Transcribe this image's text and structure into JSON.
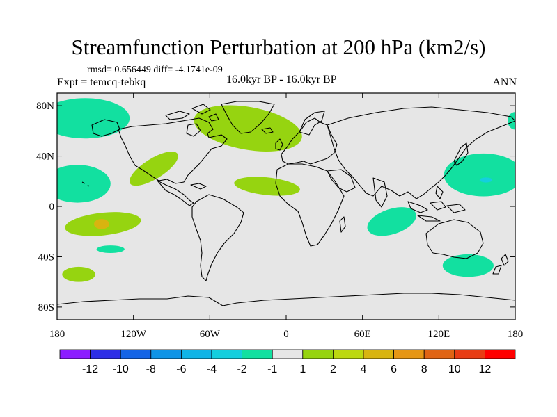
{
  "title": "Streamfunction Perturbation at 200 hPa (km2/s)",
  "stats_line": "rmsd= 0.656449 diff= -4.1741e-09",
  "expt_line": "Expt = temcq-tebkq",
  "period_line": "16.0kyr BP - 16.0kyr BP",
  "season": "ANN",
  "map": {
    "lon_range": [
      -180,
      180
    ],
    "lat_range": [
      -90,
      90
    ],
    "x_ticks": [
      {
        "lon": -180,
        "label": "180"
      },
      {
        "lon": -120,
        "label": "120W"
      },
      {
        "lon": -60,
        "label": "60W"
      },
      {
        "lon": 0,
        "label": "0"
      },
      {
        "lon": 60,
        "label": "60E"
      },
      {
        "lon": 120,
        "label": "120E"
      },
      {
        "lon": 180,
        "label": "180"
      }
    ],
    "y_ticks": [
      {
        "lat": 80,
        "label": "80N"
      },
      {
        "lat": 40,
        "label": "40N"
      },
      {
        "lat": 0,
        "label": "0"
      },
      {
        "lat": -40,
        "label": "40S"
      },
      {
        "lat": -80,
        "label": "80S"
      }
    ],
    "background_color": "#e6e6e6",
    "coast_color": "#000000",
    "anomalies": [
      {
        "name": "north-pacific-arctic",
        "lon": -158,
        "lat": 70,
        "rlon": 35,
        "rlat": 16,
        "rot": 0,
        "level": -2
      },
      {
        "name": "east-pacific-subtropics",
        "lon": -164,
        "lat": 18,
        "rlon": 26,
        "rlat": 15,
        "rot": 0,
        "level": -2
      },
      {
        "name": "hudson-bay-greenland",
        "lon": -30,
        "lat": 62,
        "rlon": 43,
        "rlat": 17,
        "rot": 10,
        "level": 2
      },
      {
        "name": "north-america-southeast",
        "lon": -104,
        "lat": 30,
        "rlon": 22,
        "rlat": 8,
        "rot": -32,
        "level": 2
      },
      {
        "name": "north-africa",
        "lon": -15,
        "lat": 16,
        "rlon": 26,
        "rlat": 7,
        "rot": 6,
        "level": 2
      },
      {
        "name": "south-pacific-tropics",
        "lon": -144,
        "lat": -14,
        "rlon": 30,
        "rlat": 9,
        "rot": -6,
        "level": 2
      },
      {
        "name": "south-pacific-tropics-peak",
        "lon": -145,
        "lat": -14,
        "rlon": 6,
        "rlat": 4,
        "rot": 0,
        "level": 4
      },
      {
        "name": "south-pacific-midlat",
        "lon": -138,
        "lat": -34,
        "rlon": 11,
        "rlat": 3,
        "rot": 0,
        "level": -2
      },
      {
        "name": "south-pacific-high",
        "lon": -163,
        "lat": -54,
        "rlon": 13,
        "rlat": 6,
        "rot": 0,
        "level": 2
      },
      {
        "name": "west-pacific-japan",
        "lon": 155,
        "lat": 25,
        "rlon": 31,
        "rlat": 17,
        "rot": 0,
        "level": -2
      },
      {
        "name": "west-pacific-japan-core",
        "lon": 157,
        "lat": 21,
        "rlon": 5,
        "rlat": 2,
        "rot": 0,
        "level": -4
      },
      {
        "name": "arctic-east-edge",
        "lon": 180,
        "lat": 68,
        "rlon": 6,
        "rlat": 7,
        "rot": 0,
        "level": -2
      },
      {
        "name": "indian-ocean-west",
        "lon": 83,
        "lat": -12,
        "rlon": 20,
        "rlat": 10,
        "rot": -18,
        "level": -2
      },
      {
        "name": "southern-ocean-indian",
        "lon": 143,
        "lat": -47,
        "rlon": 20,
        "rlat": 9,
        "rot": 0,
        "level": -2
      }
    ]
  },
  "colorbar": {
    "colors": [
      "#8c1cff",
      "#2e2ee6",
      "#1464e6",
      "#0f94e6",
      "#10b4e6",
      "#14cfde",
      "#12e0a0",
      "#e6e6e6",
      "#96d410",
      "#bcd810",
      "#d8b410",
      "#e69614",
      "#e06414",
      "#e83c14",
      "#ff0000"
    ],
    "boundaries": [
      -12,
      -10,
      -8,
      -6,
      -4,
      -2,
      -1,
      1,
      2,
      4,
      6,
      8,
      10,
      12
    ],
    "labels": [
      "-12",
      "-10",
      "-8",
      "-6",
      "-4",
      "-2",
      "-1",
      "1",
      "2",
      "4",
      "6",
      "8",
      "10",
      "12"
    ]
  },
  "level_colors": {
    "-4": "#14cfde",
    "-2": "#12e0a0",
    "2": "#96d410",
    "4": "#d8b410"
  }
}
